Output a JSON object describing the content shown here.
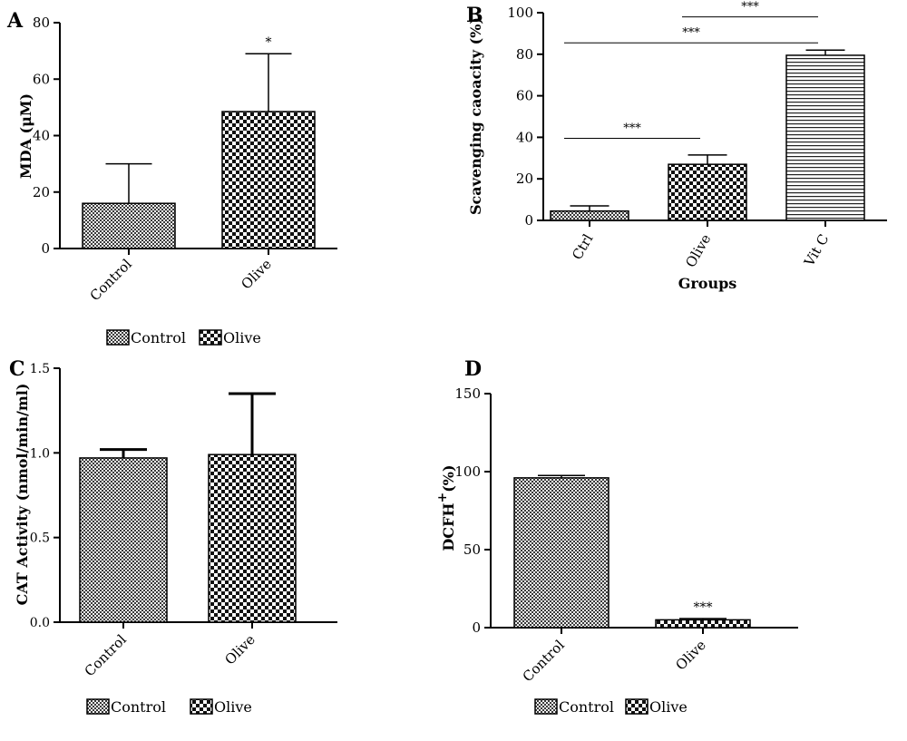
{
  "chart_data": [
    {
      "panel": "A",
      "type": "bar",
      "ylabel": "MDA (μM)",
      "xlabel": "",
      "categories": [
        "Control",
        "Olive"
      ],
      "values": [
        16,
        48.5
      ],
      "errors": [
        14,
        20.5
      ],
      "significance": [
        "",
        "*"
      ],
      "patterns": [
        "fine-check",
        "coarse-check"
      ],
      "ylim": [
        0,
        80
      ],
      "yticks": [
        "0",
        "20",
        "40",
        "60",
        "80"
      ],
      "legend": [
        {
          "label": "Control",
          "pattern": "fine-check"
        },
        {
          "label": "Olive",
          "pattern": "coarse-check"
        }
      ],
      "legend_position": "bottom"
    },
    {
      "panel": "B",
      "type": "bar",
      "ylabel": "Scavenging caoacity (%)",
      "xlabel": "Groups",
      "categories": [
        "Ctrl",
        "Olive",
        "Vit C"
      ],
      "values": [
        4.5,
        27,
        79.5
      ],
      "errors": [
        2.5,
        4.5,
        2.5
      ],
      "significance": [
        "",
        "",
        ""
      ],
      "patterns": [
        "fine-check",
        "coarse-check",
        "hstripes"
      ],
      "ylim": [
        0,
        100
      ],
      "yticks": [
        "0",
        "20",
        "40",
        "60",
        "80",
        "100"
      ],
      "comparisons": [
        {
          "from": 0,
          "to": 1,
          "label": "***",
          "y": 39.5
        },
        {
          "from": 0,
          "to": 2,
          "label": "***",
          "y": 85.5
        },
        {
          "from": 1,
          "to": 2,
          "label": "***",
          "y": 98
        }
      ]
    },
    {
      "panel": "C",
      "type": "bar",
      "ylabel": "CAT Activity (nmol/min/ml)",
      "xlabel": "",
      "categories": [
        "Control",
        "Olive"
      ],
      "values": [
        0.97,
        0.99
      ],
      "errors": [
        0.05,
        0.36
      ],
      "significance": [
        "",
        ""
      ],
      "patterns": [
        "fine-check",
        "coarse-check"
      ],
      "ylim": [
        0,
        1.5
      ],
      "yticks": [
        "0.0",
        "0.5",
        "1.0",
        "1.5"
      ],
      "legend": [
        {
          "label": "Control",
          "pattern": "fine-check"
        },
        {
          "label": "Olive",
          "pattern": "coarse-check"
        }
      ],
      "legend_position": "bottom"
    },
    {
      "panel": "D",
      "type": "bar",
      "ylabel": "DCFH",
      "ylabel_sup": "+",
      "ylabel_suffix": "(%)",
      "xlabel": "",
      "categories": [
        "Control",
        "Olive"
      ],
      "values": [
        96,
        5
      ],
      "errors": [
        1.5,
        0.8
      ],
      "significance": [
        "",
        "***"
      ],
      "patterns": [
        "fine-check",
        "coarse-check"
      ],
      "ylim": [
        0,
        150
      ],
      "yticks": [
        "0",
        "50",
        "100",
        "150"
      ],
      "legend": [
        {
          "label": "Control",
          "pattern": "fine-check"
        },
        {
          "label": "Olive",
          "pattern": "coarse-check"
        }
      ],
      "legend_position": "bottom"
    }
  ]
}
